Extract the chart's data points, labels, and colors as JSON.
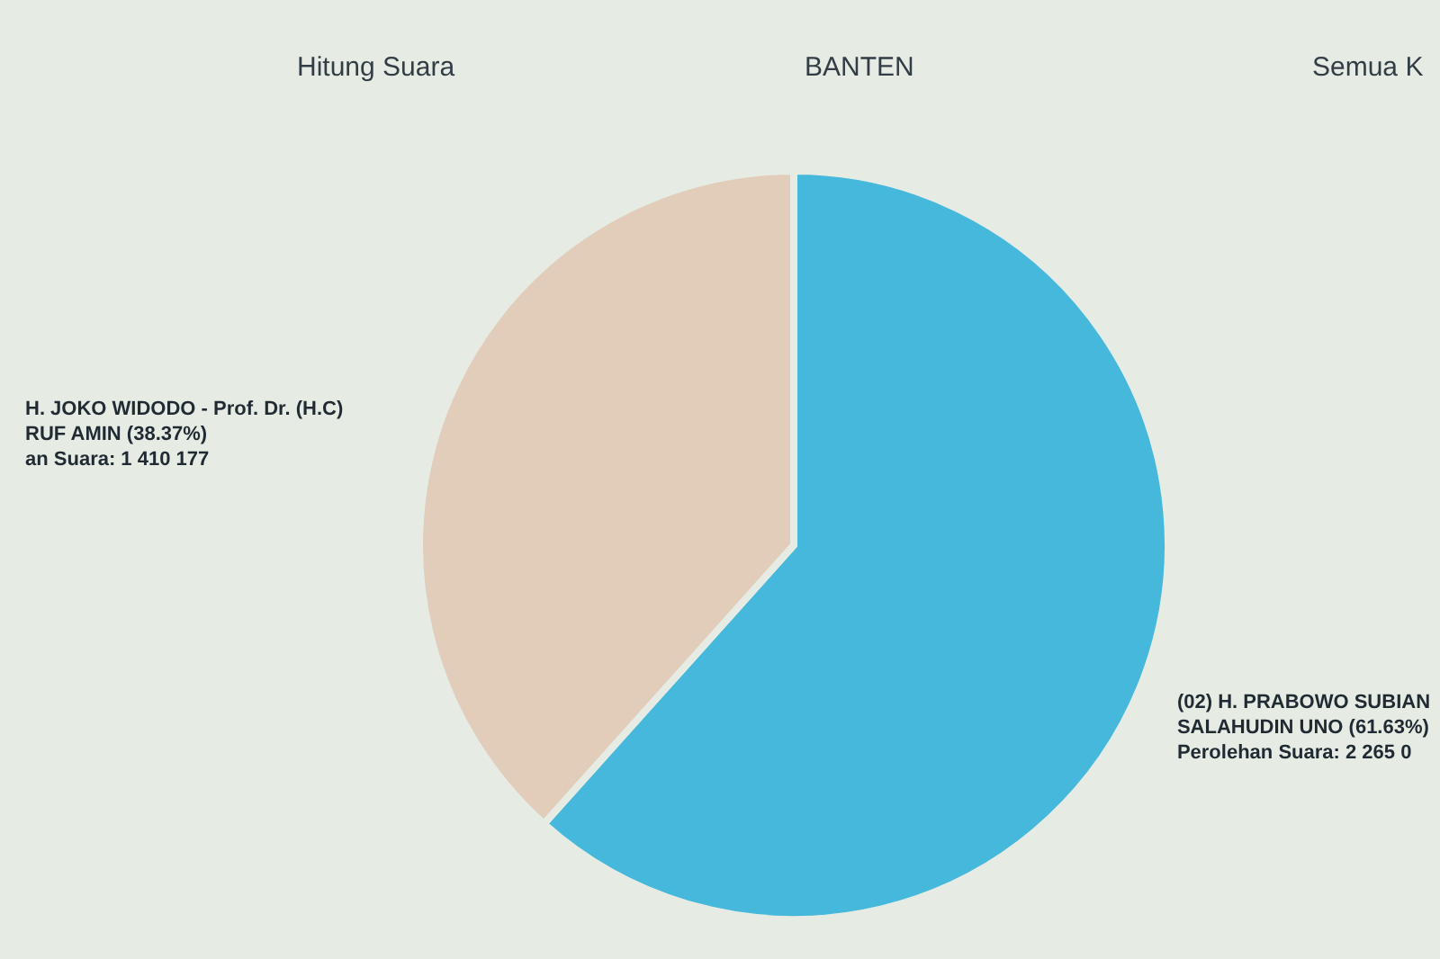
{
  "chart_data": {
    "type": "pie",
    "categories": [
      "H. JOKO WIDODO - Prof. Dr. (H.C)\nRUF AMIN",
      "(02) H. PRABOWO SUBIAN\nSALAHUDIN UNO"
    ],
    "values": [
      38.37,
      61.63
    ],
    "colors": [
      "#e2cdbb",
      "#45b8dc"
    ],
    "value_labels": [
      "(38.37%)\nan Suara: 1 410 177",
      "(61.63%)\nPerolehan Suara: 2 265 0"
    ],
    "annotations": [
      "Hitung Suara",
      "BANTEN",
      "Semua K"
    ]
  }
}
